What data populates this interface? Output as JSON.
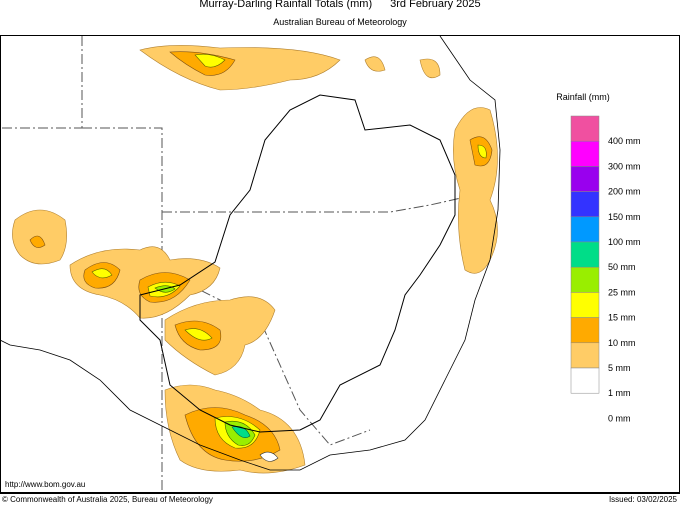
{
  "header": {
    "title": "Murray-Darling Rainfall Totals (mm)",
    "date": "3rd February 2025",
    "subtitle": "Australian Bureau of Meteorology"
  },
  "legend": {
    "title": "Rainfall (mm)",
    "colors": [
      "#f050a0",
      "#ff00ff",
      "#9900ee",
      "#3333ff",
      "#0099ff",
      "#00dd88",
      "#99ee00",
      "#ffff00",
      "#ffaa00",
      "#ffcc66",
      "#ffffff"
    ],
    "labels": [
      "400 mm",
      "300 mm",
      "200 mm",
      "150 mm",
      "100 mm",
      "50 mm",
      "25 mm",
      "15 mm",
      "10 mm",
      "5 mm",
      "1 mm",
      "0 mm"
    ]
  },
  "footer": {
    "url": "http://www.bom.gov.au",
    "copyright": "© Commonwealth of Australia 2025, Bureau of Meteorology",
    "issued": "Issued: 03/02/2025"
  }
}
